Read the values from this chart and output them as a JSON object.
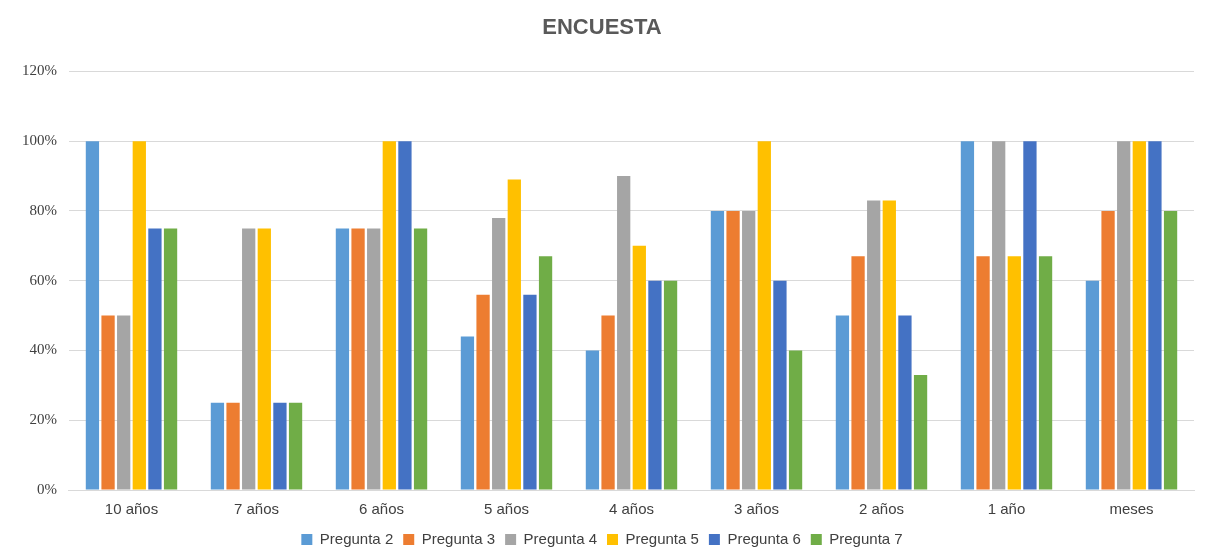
{
  "chart_data": {
    "type": "bar",
    "title": "ENCUESTA",
    "categories": [
      "10 años",
      "7 años",
      "6 años",
      "5 años",
      "4 años",
      "3 años",
      "2 años",
      "1 año",
      "meses"
    ],
    "series": [
      {
        "name": "Pregunta 2",
        "color": "#5b9bd5",
        "values": [
          100,
          25,
          75,
          44,
          40,
          80,
          50,
          100,
          60
        ]
      },
      {
        "name": "Pregunta 3",
        "color": "#ed7d31",
        "values": [
          50,
          25,
          75,
          56,
          50,
          80,
          67,
          67,
          80
        ]
      },
      {
        "name": "Pregunta 4",
        "color": "#a5a5a5",
        "values": [
          50,
          75,
          75,
          78,
          90,
          80,
          83,
          100,
          100
        ]
      },
      {
        "name": "Pregunta 5",
        "color": "#ffc000",
        "values": [
          100,
          75,
          100,
          89,
          70,
          100,
          83,
          67,
          100
        ]
      },
      {
        "name": "Pregunta 6",
        "color": "#4472c4",
        "values": [
          75,
          25,
          100,
          56,
          60,
          60,
          50,
          100,
          100
        ]
      },
      {
        "name": "Pregunta 7",
        "color": "#70ad47",
        "values": [
          75,
          25,
          75,
          67,
          60,
          40,
          33,
          67,
          80
        ]
      }
    ],
    "ylim": [
      0,
      120
    ],
    "yticks": [
      {
        "value": 0,
        "label": "0%"
      },
      {
        "value": 20,
        "label": "20%"
      },
      {
        "value": 40,
        "label": "40%"
      },
      {
        "value": 60,
        "label": "60%"
      },
      {
        "value": 80,
        "label": "80%"
      },
      {
        "value": 100,
        "label": "100%"
      },
      {
        "value": 120,
        "label": "120%"
      }
    ],
    "grid": "y",
    "legend": "bottom"
  }
}
